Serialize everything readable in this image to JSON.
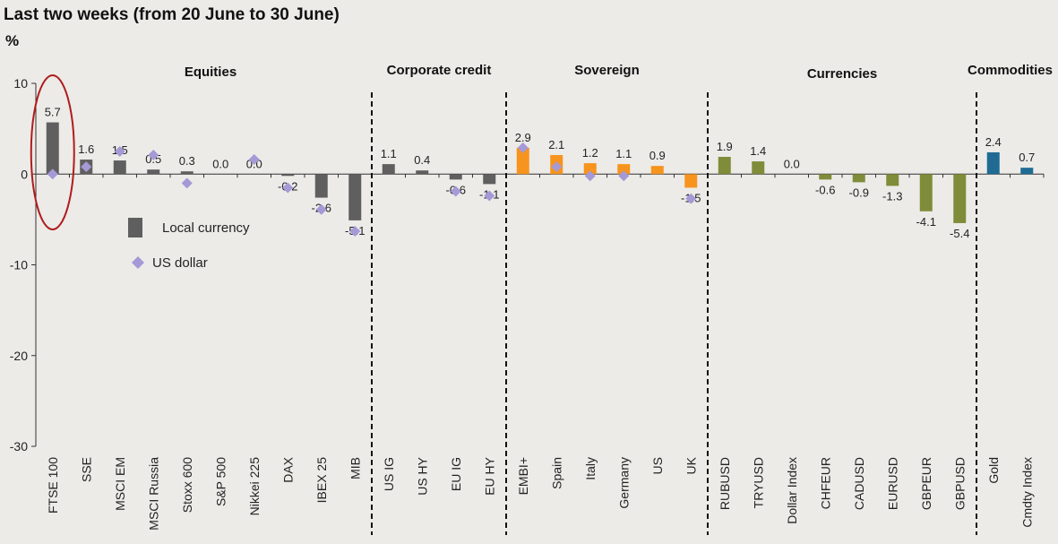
{
  "header": {
    "title": "Last two weeks (from 20 June to 30 June)",
    "unit": "%"
  },
  "colors": {
    "equities": "#5f5f5f",
    "corporate_credit": "#5f5f5f",
    "sovereign": "#f7941d",
    "currencies": "#7f8c3a",
    "commodities": "#1f6b94",
    "usd_marker": "#a599d6",
    "highlight": "#b01c1c"
  },
  "chart_data": {
    "type": "bar",
    "ylim": [
      -30,
      10
    ],
    "yticks": [
      10,
      0,
      -10,
      -20,
      -30
    ],
    "groups": [
      {
        "name": "Equities",
        "color_key": "equities"
      },
      {
        "name": "Corporate credit",
        "color_key": "corporate_credit"
      },
      {
        "name": "Sovereign",
        "color_key": "sovereign"
      },
      {
        "name": "Currencies",
        "color_key": "currencies"
      },
      {
        "name": "Commodities",
        "color_key": "commodities"
      }
    ],
    "categories": [
      "FTSE 100",
      "SSE",
      "MSCI EM",
      "MSCI Russia",
      "Stoxx 600",
      "S&P 500",
      "Nikkei 225",
      "DAX",
      "IBEX 25",
      "MIB",
      "US IG",
      "US HY",
      "EU IG",
      "EU HY",
      "EMBI+",
      "Spain",
      "Italy",
      "Germany",
      "US",
      "UK",
      "RUBUSD",
      "TRYUSD",
      "Dollar Index",
      "CHFEUR",
      "CADUSD",
      "EURUSD",
      "GBPEUR",
      "GBPUSD",
      "Gold",
      "Cmdty Index"
    ],
    "category_group": [
      0,
      0,
      0,
      0,
      0,
      0,
      0,
      0,
      0,
      0,
      1,
      1,
      1,
      1,
      2,
      2,
      2,
      2,
      2,
      2,
      3,
      3,
      3,
      3,
      3,
      3,
      3,
      3,
      4,
      4
    ],
    "series": [
      {
        "name": "Local currency",
        "values": [
          5.7,
          1.6,
          1.5,
          0.5,
          0.3,
          0.0,
          0.0,
          -0.2,
          -2.6,
          -5.1,
          1.1,
          0.4,
          -0.6,
          -1.1,
          2.9,
          2.1,
          1.2,
          1.1,
          0.9,
          -1.5,
          1.9,
          1.4,
          0.0,
          -0.6,
          -0.9,
          -1.3,
          -4.1,
          -5.4,
          2.4,
          0.7
        ],
        "labels": [
          "5.7",
          "1.6",
          "1.5",
          "0.5",
          "0.3",
          "0.0",
          "0.0",
          "-0.2",
          "-2.6",
          "-5.1",
          "1.1",
          "0.4",
          "-0.6",
          "-1.1",
          "2.9",
          "2.1",
          "1.2",
          "1.1",
          "0.9",
          "-1.5",
          "1.9",
          "1.4",
          "0.0",
          "-0.6",
          "-0.9",
          "-1.3",
          "-4.1",
          "-5.4",
          "2.4",
          "0.7"
        ]
      },
      {
        "name": "US dollar",
        "values": [
          0.0,
          0.8,
          2.5,
          2.1,
          -1.0,
          null,
          1.6,
          -1.5,
          -3.9,
          -6.3,
          null,
          null,
          -1.9,
          -2.4,
          2.9,
          0.8,
          -0.2,
          -0.2,
          null,
          -2.7,
          null,
          null,
          null,
          null,
          null,
          null,
          null,
          null,
          null,
          null
        ]
      }
    ],
    "legend": {
      "placement": "left",
      "items": [
        "Local currency",
        "US dollar"
      ]
    },
    "highlight": "FTSE 100"
  }
}
